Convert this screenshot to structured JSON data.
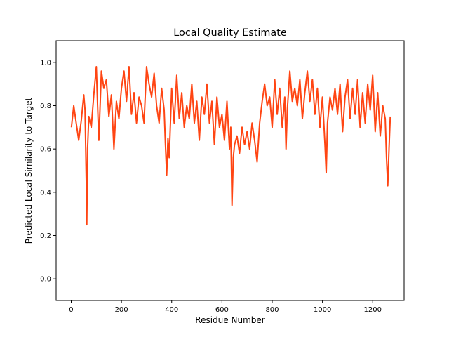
{
  "chart_data": {
    "type": "line",
    "title": "Local Quality Estimate",
    "xlabel": "Residue Number",
    "ylabel": "Predicted Local Similarity to Target",
    "xlim": [
      -60,
      1325
    ],
    "ylim": [
      -0.1,
      1.1
    ],
    "xticks": [
      0,
      200,
      400,
      600,
      800,
      1000,
      1200
    ],
    "yticks": [
      0.0,
      0.2,
      0.4,
      0.6,
      0.8,
      1.0
    ],
    "ytick_labels": [
      "0.0",
      "0.2",
      "0.4",
      "0.6",
      "0.8",
      "1.0"
    ],
    "grid": false,
    "legend": "none",
    "series": [
      {
        "color": "#ff4513",
        "x": [
          1,
          10,
          20,
          30,
          40,
          50,
          55,
          60,
          62,
          65,
          70,
          80,
          90,
          100,
          105,
          110,
          120,
          130,
          140,
          150,
          160,
          170,
          180,
          190,
          200,
          210,
          220,
          230,
          240,
          250,
          260,
          270,
          280,
          290,
          300,
          310,
          320,
          330,
          340,
          350,
          360,
          370,
          375,
          380,
          385,
          390,
          400,
          410,
          420,
          430,
          440,
          450,
          460,
          470,
          480,
          490,
          500,
          510,
          520,
          530,
          540,
          550,
          560,
          570,
          580,
          590,
          600,
          610,
          620,
          630,
          635,
          640,
          645,
          650,
          660,
          670,
          680,
          690,
          700,
          710,
          720,
          730,
          740,
          750,
          760,
          770,
          780,
          790,
          800,
          810,
          820,
          830,
          840,
          850,
          855,
          860,
          870,
          880,
          890,
          900,
          910,
          920,
          930,
          940,
          950,
          960,
          970,
          980,
          990,
          1000,
          1010,
          1015,
          1020,
          1030,
          1040,
          1050,
          1060,
          1070,
          1080,
          1090,
          1100,
          1110,
          1120,
          1130,
          1140,
          1150,
          1160,
          1170,
          1180,
          1190,
          1200,
          1210,
          1220,
          1230,
          1240,
          1250,
          1255,
          1260,
          1265,
          1270
        ],
        "y": [
          0.7,
          0.8,
          0.72,
          0.64,
          0.73,
          0.85,
          0.78,
          0.45,
          0.25,
          0.6,
          0.75,
          0.7,
          0.85,
          0.98,
          0.8,
          0.64,
          0.96,
          0.88,
          0.92,
          0.75,
          0.85,
          0.6,
          0.82,
          0.74,
          0.88,
          0.96,
          0.82,
          0.98,
          0.76,
          0.86,
          0.72,
          0.84,
          0.8,
          0.72,
          0.98,
          0.9,
          0.84,
          0.95,
          0.8,
          0.72,
          0.88,
          0.78,
          0.62,
          0.48,
          0.65,
          0.56,
          0.88,
          0.72,
          0.94,
          0.74,
          0.86,
          0.7,
          0.8,
          0.74,
          0.9,
          0.72,
          0.82,
          0.64,
          0.84,
          0.76,
          0.9,
          0.72,
          0.82,
          0.62,
          0.84,
          0.7,
          0.76,
          0.64,
          0.82,
          0.6,
          0.7,
          0.34,
          0.56,
          0.62,
          0.66,
          0.58,
          0.7,
          0.62,
          0.68,
          0.6,
          0.72,
          0.64,
          0.54,
          0.72,
          0.82,
          0.9,
          0.8,
          0.84,
          0.7,
          0.92,
          0.76,
          0.88,
          0.7,
          0.84,
          0.6,
          0.78,
          0.96,
          0.82,
          0.88,
          0.8,
          0.92,
          0.74,
          0.86,
          0.96,
          0.82,
          0.92,
          0.76,
          0.88,
          0.7,
          0.84,
          0.62,
          0.49,
          0.72,
          0.84,
          0.78,
          0.88,
          0.76,
          0.9,
          0.68,
          0.84,
          0.92,
          0.74,
          0.88,
          0.76,
          0.92,
          0.7,
          0.86,
          0.72,
          0.9,
          0.78,
          0.94,
          0.68,
          0.86,
          0.66,
          0.8,
          0.74,
          0.56,
          0.43,
          0.6,
          0.75
        ]
      }
    ]
  }
}
